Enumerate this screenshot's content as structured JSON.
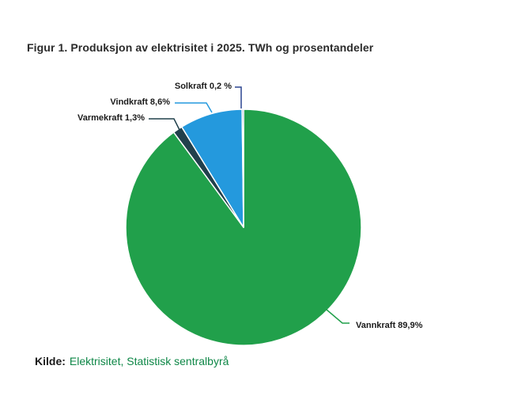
{
  "figure": {
    "title": "Figur 1. Produksjon av elektrisitet i 2025. TWh og prosentandeler",
    "source": {
      "prefix": "Kilde:",
      "text": "Elektrisitet, Statistisk sentralbyrå"
    }
  },
  "chart_data": {
    "type": "pie",
    "title": "Figur 1. Produksjon av elektrisitet i 2025. TWh og prosentandeler",
    "unit": "percent",
    "direction": "clockwise",
    "start_angle_deg": 0,
    "legend": "none",
    "slices": [
      {
        "name": "Vannkraft",
        "value": 89.9,
        "label": "Vannkraft 89,9%",
        "color": "#21A04B"
      },
      {
        "name": "Varmekraft",
        "value": 1.3,
        "label": "Varmekraft 1,3%",
        "color": "#21404C"
      },
      {
        "name": "Vindkraft",
        "value": 8.6,
        "label": "Vindkraft 8,6%",
        "color": "#2499DD"
      },
      {
        "name": "Solkraft",
        "value": 0.2,
        "label": "Solkraft 0,2 %",
        "color": "#2B4590"
      }
    ],
    "colors": {
      "slice_border": "#FFFFFF",
      "label_text": "#1A1A1A",
      "title_text": "#2B2B2B",
      "source_link": "#0E8747"
    }
  }
}
